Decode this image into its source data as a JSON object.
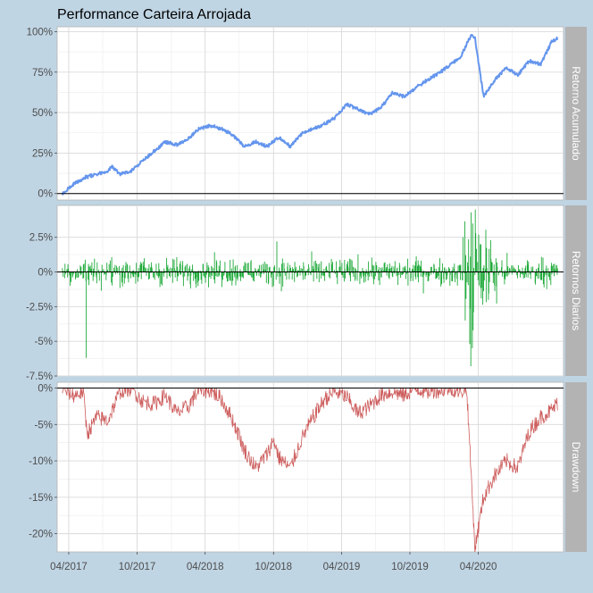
{
  "chart_data": {
    "type": "line",
    "title": "Performance Carteira Arrojada",
    "x_ticks": [
      "04/2017",
      "10/2017",
      "04/2018",
      "10/2018",
      "04/2019",
      "10/2019",
      "04/2020"
    ],
    "x_range": [
      "2017-03-01",
      "2020-11-15"
    ],
    "grid": true,
    "colors": {
      "cumulative": "#6495ed",
      "daily": "#1faa3a",
      "drawdown": "#cd5c5c",
      "strip": "#b3b3b3",
      "background": "#c0d5e4"
    },
    "panels": [
      {
        "name": "Retorno Acumulado",
        "type": "line",
        "y_ticks": [
          "0%",
          "25%",
          "50%",
          "75%",
          "100%"
        ],
        "y_tick_values": [
          0,
          25,
          50,
          75,
          100
        ],
        "ylim": [
          -4,
          103
        ],
        "series": {
          "x": [
            "2017-03-15",
            "2017-04-15",
            "2017-05-15",
            "2017-06-15",
            "2017-07-15",
            "2017-07-25",
            "2017-08-15",
            "2017-09-15",
            "2017-10-15",
            "2017-11-15",
            "2017-12-15",
            "2018-01-15",
            "2018-02-15",
            "2018-03-15",
            "2018-04-15",
            "2018-05-15",
            "2018-06-15",
            "2018-07-15",
            "2018-08-15",
            "2018-09-15",
            "2018-10-15",
            "2018-11-15",
            "2018-12-15",
            "2019-01-15",
            "2019-02-15",
            "2019-03-15",
            "2019-04-15",
            "2019-05-15",
            "2019-06-15",
            "2019-07-15",
            "2019-08-15",
            "2019-09-15",
            "2019-10-15",
            "2019-11-15",
            "2019-12-15",
            "2020-01-15",
            "2020-02-15",
            "2020-03-15",
            "2020-03-23",
            "2020-04-15",
            "2020-05-15",
            "2020-06-15",
            "2020-07-15",
            "2020-08-15",
            "2020-09-15",
            "2020-10-15",
            "2020-10-31"
          ],
          "y": [
            0,
            6,
            10,
            12,
            14,
            17,
            12,
            14,
            20,
            26,
            32,
            30,
            34,
            40,
            42,
            40,
            36,
            29,
            32,
            29,
            35,
            29,
            37,
            40,
            43,
            47,
            55,
            52,
            49,
            53,
            62,
            60,
            65,
            70,
            74,
            79,
            85,
            99,
            96,
            60,
            70,
            78,
            73,
            82,
            80,
            94,
            96
          ]
        }
      },
      {
        "name": "Retornos Diarios",
        "type": "bar",
        "y_ticks": [
          "-7.5%",
          "-5%",
          "-2.5%",
          "0%",
          "2.5%"
        ],
        "y_tick_values": [
          -7.5,
          -5,
          -2.5,
          0,
          2.5
        ],
        "ylim": [
          -7.5,
          4.8
        ],
        "series": {
          "typical_amplitude": 0.7,
          "spikes": [
            {
              "x": "2017-05-18",
              "y": -6.2
            },
            {
              "x": "2018-10-10",
              "y": 2.2
            },
            {
              "x": "2019-03-10",
              "y": -1.5
            },
            {
              "x": "2020-02-26",
              "y": -3.5
            },
            {
              "x": "2020-03-09",
              "y": -5.2
            },
            {
              "x": "2020-03-12",
              "y": -6.8
            },
            {
              "x": "2020-03-13",
              "y": 4.3
            },
            {
              "x": "2020-03-16",
              "y": -5.5
            },
            {
              "x": "2020-03-17",
              "y": 3.5
            },
            {
              "x": "2020-03-18",
              "y": -4.2
            },
            {
              "x": "2020-03-24",
              "y": 4.5
            },
            {
              "x": "2020-03-25",
              "y": 2.8
            },
            {
              "x": "2020-04-06",
              "y": 2.0
            }
          ]
        }
      },
      {
        "name": "Drawdown",
        "type": "line",
        "y_ticks": [
          "-20%",
          "-15%",
          "-10%",
          "-5%",
          "0%"
        ],
        "y_tick_values": [
          -20,
          -15,
          -10,
          -5,
          0
        ],
        "ylim": [
          -22.5,
          0.8
        ],
        "series": {
          "x": [
            "2017-03-15",
            "2017-04-15",
            "2017-05-10",
            "2017-05-20",
            "2017-06-15",
            "2017-07-15",
            "2017-08-15",
            "2017-09-15",
            "2017-10-15",
            "2017-11-15",
            "2017-12-15",
            "2018-01-15",
            "2018-02-15",
            "2018-03-15",
            "2018-04-15",
            "2018-05-15",
            "2018-06-15",
            "2018-07-15",
            "2018-08-15",
            "2018-09-15",
            "2018-10-01",
            "2018-10-15",
            "2018-11-15",
            "2018-12-15",
            "2019-01-15",
            "2019-02-15",
            "2019-03-15",
            "2019-04-15",
            "2019-05-15",
            "2019-06-15",
            "2019-07-15",
            "2019-08-15",
            "2019-09-15",
            "2019-10-15",
            "2019-11-15",
            "2019-12-15",
            "2020-01-15",
            "2020-02-15",
            "2020-03-01",
            "2020-03-23",
            "2020-04-15",
            "2020-05-15",
            "2020-06-15",
            "2020-07-15",
            "2020-08-15",
            "2020-09-15",
            "2020-10-15",
            "2020-10-31"
          ],
          "y": [
            0,
            -1,
            -0.5,
            -6.3,
            -4,
            -4.5,
            -0.5,
            0,
            -1.8,
            -2.2,
            -1,
            -3.5,
            -2.5,
            -0.3,
            -0.3,
            -1.5,
            -4.5,
            -8.5,
            -11,
            -9,
            -7,
            -9.5,
            -11,
            -7,
            -4,
            -1.5,
            -0.5,
            -1.2,
            -3.5,
            -2.5,
            -1,
            -0.5,
            -1,
            0,
            -0.5,
            -0.3,
            0,
            -0.5,
            0,
            -22,
            -15,
            -12,
            -10,
            -11,
            -6,
            -4,
            -3,
            -2
          ]
        }
      }
    ]
  }
}
